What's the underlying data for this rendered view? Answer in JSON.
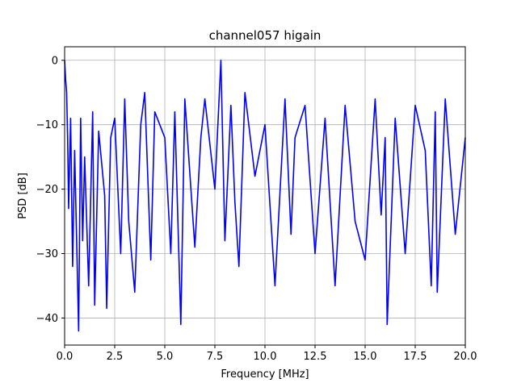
{
  "chart_data": {
    "type": "line",
    "title": "channel057 higain",
    "xlabel": "Frequency [MHz]",
    "ylabel": "PSD [dB]",
    "xlim": [
      0,
      20
    ],
    "ylim": [
      -44.2,
      2.1
    ],
    "xticks": [
      0,
      2.5,
      5,
      7.5,
      10,
      12.5,
      15,
      17.5,
      20
    ],
    "xtick_labels": [
      "0.0",
      "2.5",
      "5.0",
      "7.5",
      "10.0",
      "12.5",
      "15.0",
      "17.5",
      "20.0"
    ],
    "yticks": [
      0,
      -10,
      -20,
      -30,
      -40
    ],
    "ytick_labels": [
      "0",
      "−10",
      "−20",
      "−30",
      "−40"
    ],
    "grid": true,
    "series": [
      {
        "color": "#0000ff",
        "description": "dense noisy PSD trace, roughly 0 to -42 dB, mostly between -5 and -28 dB",
        "x": [
          0.0,
          0.05,
          0.1,
          0.15,
          0.2,
          0.3,
          0.4,
          0.5,
          0.7,
          0.8,
          0.9,
          1.0,
          1.2,
          1.4,
          1.5,
          1.7,
          2.0,
          2.1,
          2.3,
          2.5,
          2.8,
          3.0,
          3.2,
          3.5,
          3.8,
          4.0,
          4.3,
          4.5,
          5.0,
          5.3,
          5.5,
          5.8,
          6.0,
          6.5,
          6.8,
          7.0,
          7.5,
          7.8,
          8.0,
          8.3,
          8.5,
          8.7,
          9.0,
          9.5,
          10.0,
          10.5,
          11.0,
          11.3,
          11.5,
          12.0,
          12.5,
          13.0,
          13.5,
          14.0,
          14.5,
          15.0,
          15.5,
          15.8,
          16.0,
          16.1,
          16.5,
          17.0,
          17.5,
          18.0,
          18.3,
          18.5,
          18.6,
          19.0,
          19.5,
          20.0
        ],
        "y": [
          0.0,
          -3.0,
          -5.0,
          -12.0,
          -23.0,
          -9.0,
          -32.0,
          -14.0,
          -42.0,
          -9.0,
          -28.0,
          -15.0,
          -35.0,
          -8.0,
          -38.0,
          -11.0,
          -21.0,
          -38.5,
          -12.0,
          -9.0,
          -30.0,
          -6.0,
          -25.0,
          -36.0,
          -10.0,
          -5.0,
          -31.0,
          -8.0,
          -12.0,
          -30.0,
          -8.0,
          -41.0,
          -6.0,
          -29.0,
          -12.0,
          -6.0,
          -20.0,
          0.0,
          -28.0,
          -7.0,
          -22.0,
          -32.0,
          -5.0,
          -18.0,
          -10.0,
          -35.0,
          -6.0,
          -27.0,
          -12.0,
          -7.0,
          -30.0,
          -9.0,
          -35.0,
          -7.0,
          -25.0,
          -31.0,
          -6.0,
          -24.0,
          -12.0,
          -41.0,
          -9.0,
          -30.0,
          -7.0,
          -14.0,
          -35.0,
          -8.0,
          -36.0,
          -6.0,
          -27.0,
          -12.0
        ]
      }
    ]
  }
}
